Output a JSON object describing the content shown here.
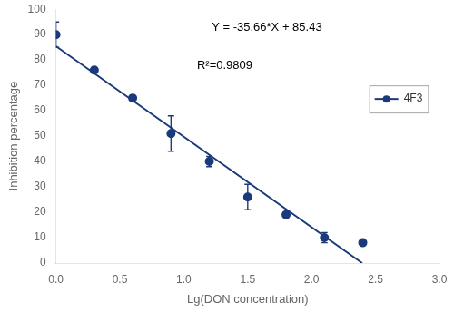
{
  "chart_data": {
    "type": "scatter",
    "xlabel": "Lg(DON concentration)",
    "ylabel": "Inhibition percentage",
    "annotations": [
      "Y = -35.66*X + 85.43",
      "R²=0.9809"
    ],
    "xlim": [
      0.0,
      3.0
    ],
    "ylim": [
      0,
      100
    ],
    "xticks": [
      {
        "value": 0.0,
        "label": "0.0"
      },
      {
        "value": 0.5,
        "label": "0.5"
      },
      {
        "value": 1.0,
        "label": "1.0"
      },
      {
        "value": 1.5,
        "label": "1.5"
      },
      {
        "value": 2.0,
        "label": "2.0"
      },
      {
        "value": 2.5,
        "label": "2.5"
      },
      {
        "value": 3.0,
        "label": "3.0"
      }
    ],
    "yticks": [
      0,
      10,
      20,
      30,
      40,
      50,
      60,
      70,
      80,
      90,
      100
    ],
    "grid": false,
    "legend": "upper right",
    "series": [
      {
        "name": "4F3",
        "color": "#1a3a7c",
        "marker": "circle",
        "line_style": "none",
        "x": [
          0.0,
          0.3,
          0.6,
          0.9,
          1.2,
          1.5,
          1.8,
          2.1,
          2.4
        ],
        "values": [
          90,
          76,
          65,
          51,
          40,
          26,
          19,
          10,
          8
        ],
        "errors": [
          5,
          0,
          0,
          7,
          2,
          5,
          1,
          2,
          0
        ]
      },
      {
        "type": "line",
        "color": "#1a3a7c",
        "line_style": "solid",
        "x": [
          0.0,
          2.3956814
        ],
        "values": [
          85.43,
          0
        ]
      }
    ]
  }
}
